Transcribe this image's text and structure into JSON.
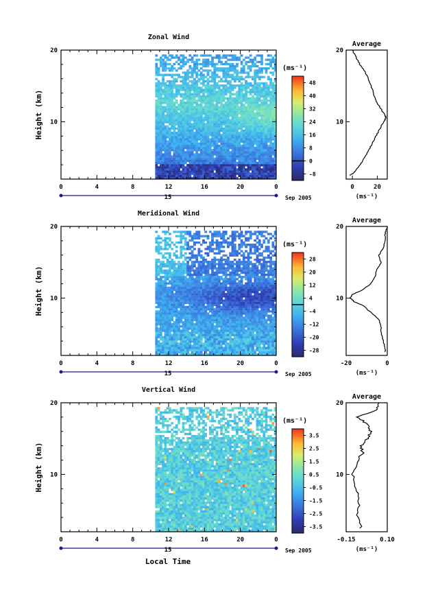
{
  "figure": {
    "x_axis_label": "Local Time",
    "date_label": "Sep 2005",
    "day_label": "15"
  },
  "chart_data": [
    {
      "type": "heatmap",
      "title": "Zonal Wind",
      "ylabel": "Height (km)",
      "xlabel": "Local Time",
      "x_ticks": [
        "0",
        "4",
        "8",
        "12",
        "16",
        "20",
        "0"
      ],
      "xlim": [
        0,
        24
      ],
      "y_ticks": [
        "10",
        "20"
      ],
      "ylim": [
        2,
        20
      ],
      "data_start_hour": 10.5,
      "colorbar": {
        "unit_label": "(ms⁻¹)",
        "labels": [
          "48",
          "40",
          "32",
          "24",
          "16",
          "8",
          "0",
          "-8"
        ],
        "range": [
          -12,
          52
        ],
        "contour_level": 0
      },
      "profile": {
        "title": "Average",
        "xlabel": "(ms⁻¹)",
        "x_ticks": [
          "0",
          "20"
        ],
        "xlim": [
          -5,
          28
        ],
        "y_ticks": [
          "10",
          "20"
        ],
        "heights": [
          2.5,
          3,
          4,
          5,
          6,
          7,
          8,
          9,
          10,
          10.5,
          11,
          12,
          13,
          14,
          15,
          16,
          17,
          18,
          19,
          20
        ],
        "values": [
          -2,
          2,
          6,
          10,
          13,
          16,
          19,
          22,
          25,
          27,
          26,
          22,
          19,
          17,
          15,
          13,
          10,
          6,
          3,
          0
        ]
      }
    },
    {
      "type": "heatmap",
      "title": "Meridional Wind",
      "ylabel": "Height (km)",
      "xlabel": "Local Time",
      "x_ticks": [
        "0",
        "4",
        "8",
        "12",
        "16",
        "20",
        "0"
      ],
      "xlim": [
        0,
        24
      ],
      "y_ticks": [
        "10",
        "20"
      ],
      "ylim": [
        2,
        20
      ],
      "data_start_hour": 10.5,
      "colorbar": {
        "unit_label": "(ms⁻¹)",
        "labels": [
          "28",
          "20",
          "12",
          "4",
          "-4",
          "-12",
          "-20",
          "-28"
        ],
        "range": [
          -32,
          32
        ],
        "contour_level": 0
      },
      "profile": {
        "title": "Average",
        "xlabel": "(ms⁻¹)",
        "x_ticks": [
          "-20",
          "0"
        ],
        "xlim": [
          -20,
          0
        ],
        "y_ticks": [
          "10",
          "20"
        ],
        "heights": [
          2.5,
          3,
          4,
          5,
          6,
          7,
          8,
          9,
          9.5,
          10,
          10.5,
          11,
          12,
          13,
          14,
          15,
          16,
          17,
          18,
          19,
          20
        ],
        "values": [
          -1,
          -1,
          -2,
          -3,
          -3,
          -4,
          -8,
          -12,
          -16,
          -18,
          -17,
          -13,
          -8,
          -6,
          -5,
          -3,
          -4,
          -2,
          -1,
          -1,
          0
        ]
      }
    },
    {
      "type": "heatmap",
      "title": "Vertical Wind",
      "ylabel": "Height (km)",
      "xlabel": "Local Time",
      "x_ticks": [
        "0",
        "4",
        "8",
        "12",
        "16",
        "20",
        "0"
      ],
      "xlim": [
        0,
        24
      ],
      "y_ticks": [
        "10",
        "20"
      ],
      "ylim": [
        2,
        20
      ],
      "data_start_hour": 10.5,
      "colorbar": {
        "unit_label": "(ms⁻¹)",
        "labels": [
          "3.5",
          "2.5",
          "1.5",
          "0.5",
          "-0.5",
          "-1.5",
          "-2.5",
          "-3.5"
        ],
        "range": [
          -4,
          4
        ],
        "contour_level": null
      },
      "profile": {
        "title": "Average",
        "xlabel": "(ms⁻¹)",
        "x_ticks": [
          "-0.15",
          "0.10"
        ],
        "xlim": [
          -0.15,
          0.1
        ],
        "y_ticks": [
          "10",
          "20"
        ],
        "heights": [
          2.5,
          4,
          6,
          8,
          10,
          12,
          13,
          14,
          15,
          16,
          17,
          18,
          19,
          20
        ],
        "values": [
          -0.06,
          -0.08,
          -0.07,
          -0.09,
          -0.11,
          -0.08,
          -0.05,
          -0.06,
          -0.02,
          0.0,
          -0.02,
          -0.08,
          0.03,
          0.05
        ]
      }
    }
  ]
}
